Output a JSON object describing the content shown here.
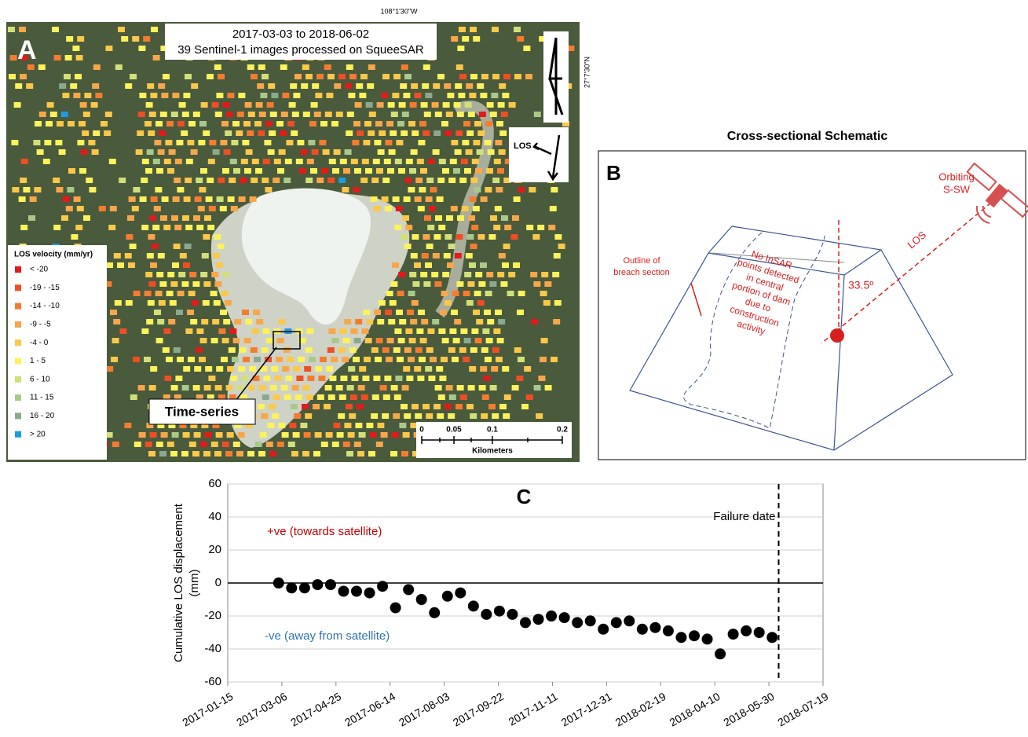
{
  "map": {
    "panel_letter": "A",
    "title_lines": [
      "2017-03-03 to 2018-06-02",
      "39 Sentinel-1 images processed on SqueeSAR"
    ],
    "longitude_label": "108°1'30\"W",
    "latitude_label": "27°7'30\"N",
    "los_label": "LOS",
    "legend": {
      "title": "LOS velocity (mm/yr)",
      "items": [
        {
          "label": "< -20",
          "color": "#e01b1b"
        },
        {
          "label": "-19 - -15",
          "color": "#ef4e25"
        },
        {
          "label": "-14 - -10",
          "color": "#f47c30"
        },
        {
          "label": "-9 - -5",
          "color": "#f8a64a"
        },
        {
          "label": "-4 - 0",
          "color": "#fbc84a"
        },
        {
          "label": "1 - 5",
          "color": "#fbf25c"
        },
        {
          "label": "6 - 10",
          "color": "#d2e07a"
        },
        {
          "label": "11 - 15",
          "color": "#a9c98b"
        },
        {
          "label": "16 - 20",
          "color": "#8aa98f"
        },
        {
          "label": "> 20",
          "color": "#1b9de0"
        }
      ]
    },
    "callout": "Time-series",
    "scale_bar": {
      "labels": [
        "0",
        "0.05",
        "0.1",
        "0.2"
      ],
      "unit": "Kilometers"
    }
  },
  "schematic": {
    "title": "Cross-sectional Schematic",
    "panel_letter": "B",
    "satellite_lines": [
      "Orbiting",
      "S-SW"
    ],
    "los_label": "LOS",
    "angle_label": "33.5º",
    "breach_lines": [
      "Outline of",
      "breach section"
    ],
    "note_lines": [
      "No InSAR",
      "points detected",
      "in central",
      "portion of dam",
      "due to",
      "construction",
      "activity"
    ]
  },
  "chart_data": {
    "type": "scatter",
    "panel_letter": "C",
    "y_label_lines": [
      "Cumulative LOS displacement",
      "(mm)"
    ],
    "x": [
      "2017-03-03",
      "2017-03-15",
      "2017-03-27",
      "2017-04-08",
      "2017-04-20",
      "2017-05-02",
      "2017-05-14",
      "2017-05-26",
      "2017-06-07",
      "2017-06-19",
      "2017-07-01",
      "2017-07-13",
      "2017-07-25",
      "2017-08-06",
      "2017-08-18",
      "2017-08-30",
      "2017-09-11",
      "2017-09-23",
      "2017-10-05",
      "2017-10-17",
      "2017-10-29",
      "2017-11-10",
      "2017-11-22",
      "2017-12-04",
      "2017-12-16",
      "2017-12-28",
      "2018-01-09",
      "2018-01-21",
      "2018-02-02",
      "2018-02-14",
      "2018-02-26",
      "2018-03-10",
      "2018-03-22",
      "2018-04-03",
      "2018-04-15",
      "2018-04-27",
      "2018-05-09",
      "2018-05-21",
      "2018-06-02"
    ],
    "values": [
      0,
      -3,
      -3,
      -1,
      -1,
      -5,
      -5,
      -6,
      -2,
      -15,
      -4,
      -10,
      -18,
      -8,
      -6,
      -14,
      -19,
      -17,
      -19,
      -24,
      -22,
      -20,
      -21,
      -24,
      -23,
      -28,
      -24,
      -23,
      -28,
      -27,
      -29,
      -33,
      -32,
      -34,
      -43,
      -31,
      -29,
      -30,
      -33
    ],
    "color": "#000000",
    "xlim": [
      "2017-01-15",
      "2018-07-19"
    ],
    "xticks": [
      "2017-01-15",
      "2017-03-06",
      "2017-04-25",
      "2017-06-14",
      "2017-08-03",
      "2017-09-22",
      "2017-11-11",
      "2017-12-31",
      "2018-02-19",
      "2018-04-10",
      "2018-05-30",
      "2018-07-19"
    ],
    "ylim": [
      -60,
      60
    ],
    "yticks": [
      -60,
      -40,
      -20,
      0,
      20,
      40,
      60
    ],
    "grid": true,
    "annotations": [
      {
        "text": "Failure date",
        "x": "2018-06-08"
      },
      {
        "text": "+ve (towards satellite)",
        "color": "#c00000"
      },
      {
        "text": "-ve (away from satellite)",
        "color": "#2e75b6"
      }
    ]
  }
}
